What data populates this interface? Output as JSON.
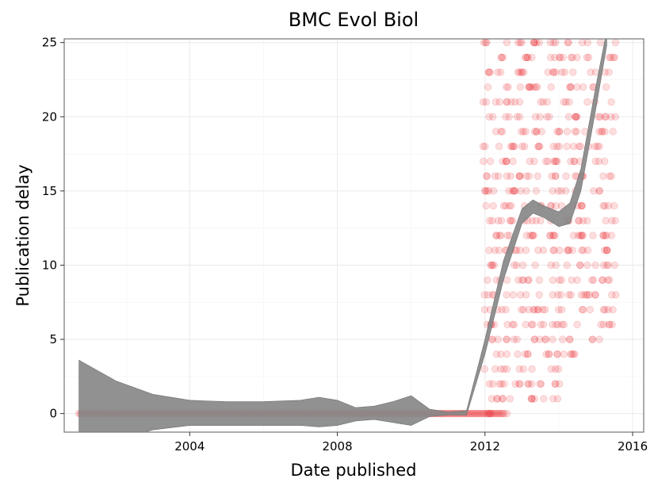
{
  "chart_data": {
    "type": "scatter",
    "title": "BMC Evol Biol",
    "xlabel": "Date published",
    "ylabel": "Publication delay",
    "x_unit": "year",
    "xlim": [
      2000.6,
      2016.3
    ],
    "ylim": [
      -1.25,
      25.25
    ],
    "x_ticks": [
      2004,
      2008,
      2012,
      2016
    ],
    "x_tick_labels": [
      "2004",
      "2008",
      "2012",
      "2016"
    ],
    "y_ticks": [
      0,
      5,
      10,
      15,
      20,
      25
    ],
    "y_tick_labels": [
      "0",
      "5",
      "10",
      "15",
      "20",
      "25"
    ],
    "grid": true,
    "legend": "none",
    "point_color": "#e8000b",
    "point_alpha": 0.13,
    "smooth_color": "#888888",
    "baseline_points": {
      "x_start": 2001.0,
      "x_end": 2012.55,
      "step": 0.04,
      "y": 0
    },
    "scatter_ranges": [
      {
        "x_start": 2011.95,
        "x_end": 2012.65,
        "y_min": 0,
        "y_max": 25
      },
      {
        "x_start": 2012.65,
        "x_end": 2013.35,
        "y_min": 1,
        "y_max": 25
      },
      {
        "x_start": 2013.35,
        "x_end": 2014.05,
        "y_min": 1,
        "y_max": 25
      },
      {
        "x_start": 2014.05,
        "x_end": 2014.75,
        "y_min": 4,
        "y_max": 25
      },
      {
        "x_start": 2014.75,
        "x_end": 2015.55,
        "y_min": 5,
        "y_max": 25
      }
    ],
    "smooth_band": {
      "x": [
        2001.0,
        2002.0,
        2003.0,
        2004.0,
        2005.0,
        2006.0,
        2007.0,
        2007.5,
        2008.0,
        2008.5,
        2009.0,
        2009.5,
        2010.0,
        2010.5,
        2011.0,
        2011.5,
        2012.0,
        2012.5,
        2013.0,
        2013.3,
        2013.6,
        2014.0,
        2014.3,
        2014.6,
        2015.0,
        2015.3
      ],
      "lower": [
        -3.2,
        -1.8,
        -1.1,
        -0.8,
        -0.8,
        -0.8,
        -0.8,
        -0.9,
        -0.8,
        -0.5,
        -0.4,
        -0.6,
        -0.8,
        -0.2,
        -0.1,
        -0.1,
        4.0,
        9.0,
        12.8,
        13.5,
        13.2,
        12.6,
        12.8,
        15.0,
        20.5,
        24.8
      ],
      "upper": [
        3.6,
        2.2,
        1.3,
        0.9,
        0.8,
        0.8,
        0.9,
        1.1,
        0.9,
        0.4,
        0.5,
        0.8,
        1.2,
        0.3,
        0.1,
        0.2,
        5.0,
        10.3,
        13.8,
        14.4,
        14.0,
        13.6,
        14.2,
        16.5,
        22.0,
        25.8
      ]
    }
  }
}
